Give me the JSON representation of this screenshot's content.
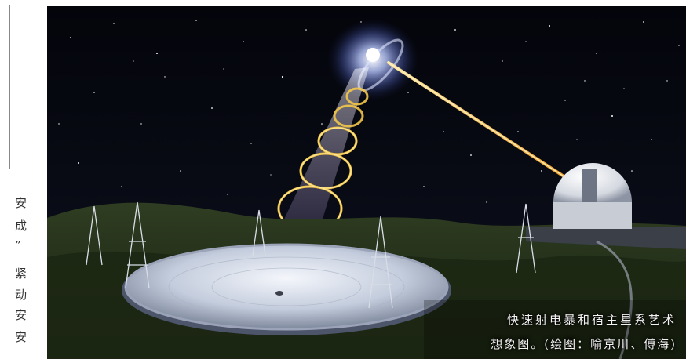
{
  "side_text": [
    "安",
    "成",
    "”",
    "紧",
    "动",
    "安",
    "安"
  ],
  "caption": {
    "line1": "快速射电暴和宿主星系艺术",
    "line2": "想象图。(绘图：喻京川、傅海)"
  },
  "colors": {
    "sky": "#05060d",
    "ring": "#f4c84a",
    "beam": "#f7b53a",
    "dish": "#cfd7e6",
    "ground": "#2c3a1f"
  }
}
